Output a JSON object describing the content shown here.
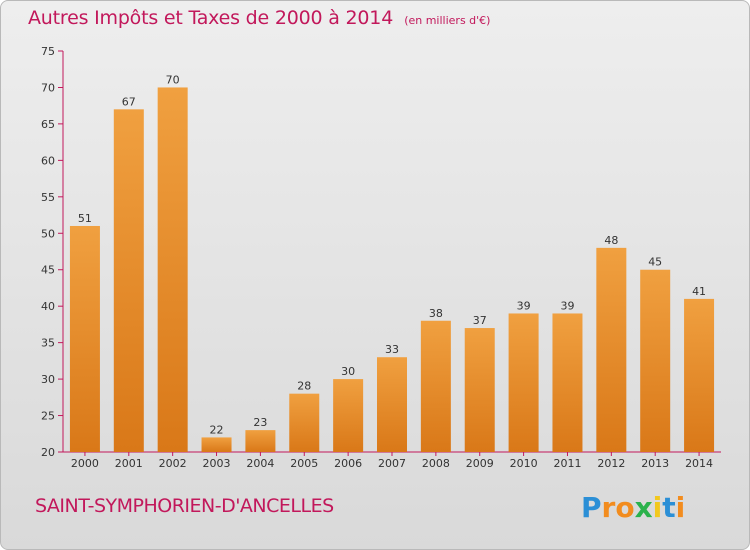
{
  "chart_data": {
    "type": "bar",
    "title": "Autres Impôts et Taxes de 2000 à 2014",
    "subtitle": "(en milliers d'€)",
    "categories": [
      "2000",
      "2001",
      "2002",
      "2003",
      "2004",
      "2005",
      "2006",
      "2007",
      "2008",
      "2009",
      "2010",
      "2011",
      "2012",
      "2013",
      "2014"
    ],
    "values": [
      51,
      67,
      70,
      22,
      23,
      28,
      30,
      33,
      38,
      37,
      39,
      39,
      48,
      45,
      41
    ],
    "ylim": [
      20,
      75
    ],
    "yticks": [
      20,
      25,
      30,
      35,
      40,
      45,
      50,
      55,
      60,
      65,
      70,
      75
    ],
    "xlabel": "",
    "ylabel": "",
    "grid": false,
    "bar_color": "#f0a040",
    "bar_color_dark": "#d97818",
    "axis_color": "#c2185b"
  },
  "footer": {
    "commune": "SAINT-SYMPHORIEN-D'ANCELLES",
    "brand_letters": [
      "P",
      "r",
      "o",
      "x",
      "i",
      "t",
      "i"
    ],
    "brand_colors": [
      "#2b8fd6",
      "#f28c1e",
      "#f28c1e",
      "#2bb24c",
      "#f2c81e",
      "#2b8fd6",
      "#f28c1e"
    ]
  }
}
